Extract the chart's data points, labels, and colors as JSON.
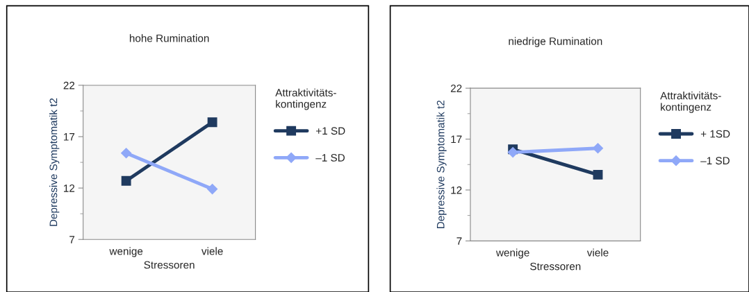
{
  "chart_data": [
    {
      "type": "line",
      "title": "hohe Rumination",
      "xlabel": "Stressoren",
      "ylabel": "Depressive Symptomatik t2",
      "legend_title": "Attraktivitäts-\nkontingenz",
      "categories": [
        "wenige",
        "viele"
      ],
      "ylim": [
        7,
        22
      ],
      "yticks": [
        7,
        12,
        17,
        22
      ],
      "legend": "right",
      "grid": false,
      "series": [
        {
          "name": "+1 SD",
          "color": "#1f3a5f",
          "marker": "square",
          "values": [
            12.7,
            18.4
          ]
        },
        {
          "name": "–1 SD",
          "color": "#8fa8f8",
          "marker": "diamond",
          "values": [
            15.4,
            11.9
          ]
        }
      ]
    },
    {
      "type": "line",
      "title": "niedrige Rumination",
      "xlabel": "Stressoren",
      "ylabel": "Depressive Symptomatik t2",
      "legend_title": "Attraktivitäts-\nkontingenz",
      "categories": [
        "wenige",
        "viele"
      ],
      "ylim": [
        7,
        22
      ],
      "yticks": [
        7,
        12,
        17,
        22
      ],
      "legend": "right",
      "grid": false,
      "series": [
        {
          "name": "+ 1SD",
          "color": "#1f3a5f",
          "marker": "square",
          "values": [
            16.0,
            13.5
          ]
        },
        {
          "name": "–1 SD",
          "color": "#8fa8f8",
          "marker": "diamond",
          "values": [
            15.7,
            16.1
          ]
        }
      ]
    }
  ]
}
